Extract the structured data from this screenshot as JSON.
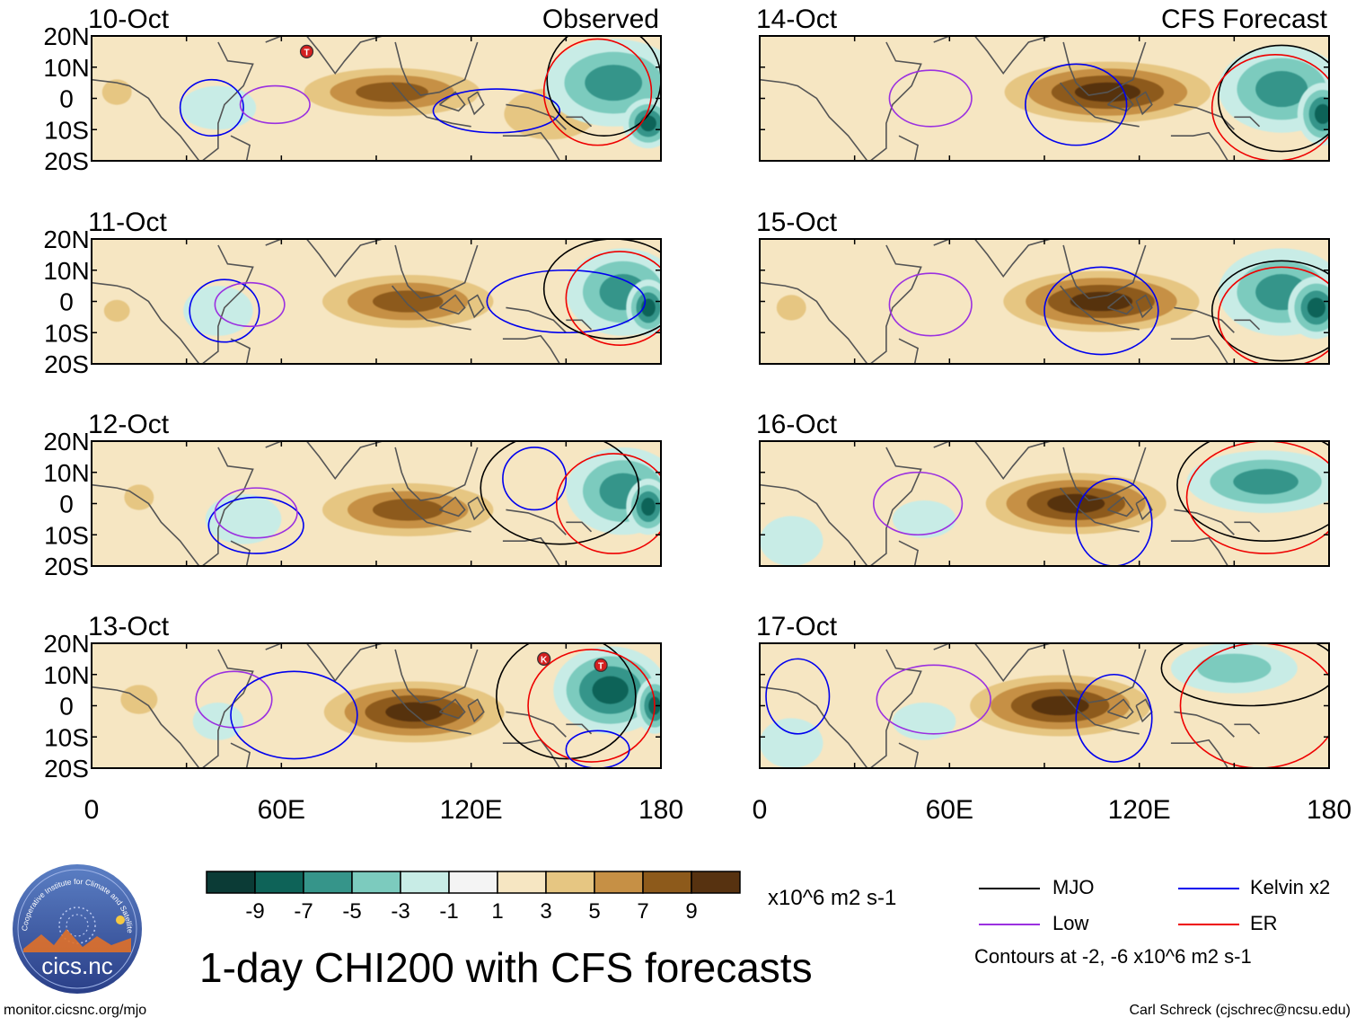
{
  "figure": {
    "title": "1-day CHI200 with CFS forecasts",
    "units": "x10^6 m2 s-1",
    "contour_note": "Contours at -2, -6 x10^6 m2 s-1",
    "column_labels": {
      "observed": "Observed",
      "forecast": "CFS Forecast"
    },
    "website": "monitor.cicsnc.org/mjo",
    "credit": "Carl Schreck (cjschrec@ncsu.edu)",
    "logo": {
      "text": "cics.nc",
      "ring_text": "Cooperative Institute for Climate and Satellites"
    }
  },
  "legend": [
    {
      "label": "MJO",
      "color": "#000000"
    },
    {
      "label": "Kelvin x2",
      "color": "#0000ee"
    },
    {
      "label": "Low",
      "color": "#9b30e0"
    },
    {
      "label": "ER",
      "color": "#ee0000"
    }
  ],
  "colorbar": {
    "colors": [
      "#0b3b36",
      "#0e6358",
      "#36958a",
      "#7ccbbe",
      "#c8ece6",
      "#f4f4f4",
      "#f6e6c2",
      "#e6c682",
      "#c69045",
      "#8d5a1b",
      "#573210"
    ],
    "tick_labels": [
      "-9",
      "-7",
      "-5",
      "-3",
      "-1",
      "1",
      "3",
      "5",
      "7",
      "9"
    ]
  },
  "chart_data": {
    "type": "heatmap",
    "variable": "CHI200 (200-hPa velocity potential) anomaly",
    "x_axis": {
      "range": [
        0,
        180
      ],
      "ticks": [
        0,
        60,
        120,
        180
      ],
      "tick_labels": [
        "0",
        "60E",
        "120E",
        "180"
      ]
    },
    "y_axis": {
      "range": [
        -20,
        20
      ],
      "ticks": [
        20,
        10,
        0,
        -10,
        -20
      ],
      "tick_labels": [
        "20N",
        "10N",
        "0",
        "10S",
        "20S"
      ]
    },
    "panels": [
      {
        "date": "10-Oct",
        "source": "Observed",
        "blobs": [
          [
            95,
            2,
            9.5,
            36,
            10
          ],
          [
            145,
            -5,
            5,
            25,
            14
          ],
          [
            40,
            -3,
            -2.5,
            12,
            7
          ],
          [
            165,
            5,
            -7,
            22,
            14
          ],
          [
            176,
            -8,
            -9,
            8,
            8
          ],
          [
            8,
            2,
            5,
            8,
            7
          ]
        ],
        "contours": [
          {
            "type": "Kelvin",
            "color": "#0000ee",
            "cx": 38,
            "cy": -3,
            "rx": 10,
            "ry": 9
          },
          {
            "type": "Low",
            "color": "#9b30e0",
            "cx": 58,
            "cy": -2,
            "rx": 11,
            "ry": 6
          },
          {
            "type": "Kelvin",
            "color": "#0000ee",
            "cx": 128,
            "cy": -4,
            "rx": 20,
            "ry": 7
          },
          {
            "type": "MJO",
            "color": "#000000",
            "cx": 162,
            "cy": 6,
            "rx": 18,
            "ry": 18
          },
          {
            "type": "ER",
            "color": "#ee0000",
            "cx": 160,
            "cy": 2,
            "rx": 17,
            "ry": 17
          }
        ],
        "storms": [
          {
            "symbol": "T",
            "lon": 68,
            "lat": 15
          }
        ]
      },
      {
        "date": "14-Oct",
        "source": "CFS Forecast",
        "blobs": [
          [
            110,
            2,
            10,
            40,
            12
          ],
          [
            165,
            3,
            -7.5,
            20,
            14
          ],
          [
            178,
            -5,
            -9,
            8,
            10
          ],
          [
            40,
            -2,
            2,
            12,
            8
          ]
        ],
        "contours": [
          {
            "type": "Low",
            "color": "#9b30e0",
            "cx": 54,
            "cy": 0,
            "rx": 13,
            "ry": 9
          },
          {
            "type": "Kelvin",
            "color": "#0000ee",
            "cx": 100,
            "cy": -2,
            "rx": 16,
            "ry": 13
          },
          {
            "type": "MJO",
            "color": "#000000",
            "cx": 165,
            "cy": 0,
            "rx": 20,
            "ry": 17
          },
          {
            "type": "ER",
            "color": "#ee0000",
            "cx": 163,
            "cy": -3,
            "rx": 20,
            "ry": 17
          }
        ],
        "storms": []
      },
      {
        "date": "11-Oct",
        "source": "Observed",
        "blobs": [
          [
            100,
            0,
            9.5,
            35,
            11
          ],
          [
            40,
            -3,
            -2.5,
            11,
            8
          ],
          [
            168,
            3,
            -7.5,
            18,
            14
          ],
          [
            176,
            -2,
            -9,
            7,
            9
          ],
          [
            8,
            -3,
            5,
            7,
            6
          ]
        ],
        "contours": [
          {
            "type": "Kelvin",
            "color": "#0000ee",
            "cx": 42,
            "cy": -3,
            "rx": 11,
            "ry": 10
          },
          {
            "type": "Low",
            "color": "#9b30e0",
            "cx": 50,
            "cy": -1,
            "rx": 11,
            "ry": 7
          },
          {
            "type": "Kelvin",
            "color": "#0000ee",
            "cx": 150,
            "cy": 0,
            "rx": 25,
            "ry": 10
          },
          {
            "type": "MJO",
            "color": "#000000",
            "cx": 165,
            "cy": 4,
            "rx": 22,
            "ry": 16
          },
          {
            "type": "ER",
            "color": "#ee0000",
            "cx": 167,
            "cy": 1,
            "rx": 17,
            "ry": 15
          }
        ],
        "storms": []
      },
      {
        "date": "15-Oct",
        "source": "CFS Forecast",
        "blobs": [
          [
            108,
            0,
            10,
            38,
            12
          ],
          [
            165,
            3,
            -7.5,
            20,
            14
          ],
          [
            176,
            -2,
            -9,
            9,
            10
          ],
          [
            10,
            -2,
            5,
            8,
            7
          ]
        ],
        "contours": [
          {
            "type": "Low",
            "color": "#9b30e0",
            "cx": 54,
            "cy": -1,
            "rx": 13,
            "ry": 10
          },
          {
            "type": "Kelvin",
            "color": "#0000ee",
            "cx": 108,
            "cy": -3,
            "rx": 18,
            "ry": 14
          },
          {
            "type": "MJO",
            "color": "#000000",
            "cx": 165,
            "cy": -3,
            "rx": 22,
            "ry": 16
          },
          {
            "type": "ER",
            "color": "#ee0000",
            "cx": 165,
            "cy": -5,
            "rx": 20,
            "ry": 16
          }
        ],
        "storms": []
      },
      {
        "date": "12-Oct",
        "source": "Observed",
        "blobs": [
          [
            100,
            -2,
            9.5,
            35,
            11
          ],
          [
            48,
            -5,
            -2,
            12,
            8
          ],
          [
            168,
            4,
            -7.5,
            18,
            14
          ],
          [
            176,
            -1,
            -9,
            7,
            9
          ],
          [
            15,
            2,
            5,
            8,
            7
          ]
        ],
        "contours": [
          {
            "type": "Kelvin",
            "color": "#0000ee",
            "cx": 52,
            "cy": -7,
            "rx": 15,
            "ry": 9
          },
          {
            "type": "Low",
            "color": "#9b30e0",
            "cx": 52,
            "cy": -3,
            "rx": 13,
            "ry": 8
          },
          {
            "type": "Kelvin",
            "color": "#0000ee",
            "cx": 140,
            "cy": 8,
            "rx": 10,
            "ry": 10
          },
          {
            "type": "MJO",
            "color": "#000000",
            "cx": 148,
            "cy": 5,
            "rx": 25,
            "ry": 18
          },
          {
            "type": "ER",
            "color": "#ee0000",
            "cx": 165,
            "cy": 0,
            "rx": 18,
            "ry": 16
          }
        ],
        "storms": []
      },
      {
        "date": "16-Oct",
        "source": "CFS Forecast",
        "blobs": [
          [
            100,
            0,
            10,
            35,
            12
          ],
          [
            160,
            7,
            -6,
            25,
            10
          ],
          [
            10,
            -12,
            -2.5,
            10,
            8
          ],
          [
            52,
            -5,
            -1.5,
            10,
            6
          ]
        ],
        "contours": [
          {
            "type": "Low",
            "color": "#9b30e0",
            "cx": 50,
            "cy": 0,
            "rx": 14,
            "ry": 10
          },
          {
            "type": "Kelvin",
            "color": "#0000ee",
            "cx": 112,
            "cy": -6,
            "rx": 12,
            "ry": 14
          },
          {
            "type": "MJO",
            "color": "#000000",
            "cx": 160,
            "cy": 6,
            "rx": 28,
            "ry": 18
          },
          {
            "type": "ER",
            "color": "#ee0000",
            "cx": 160,
            "cy": 2,
            "rx": 25,
            "ry": 18
          }
        ],
        "storms": []
      },
      {
        "date": "13-Oct",
        "source": "Observed",
        "blobs": [
          [
            102,
            -2,
            10,
            35,
            12
          ],
          [
            40,
            -5,
            -1.5,
            8,
            6
          ],
          [
            164,
            5,
            -8,
            18,
            14
          ],
          [
            178,
            0,
            -9,
            6,
            9
          ],
          [
            15,
            2,
            5,
            10,
            8
          ]
        ],
        "contours": [
          {
            "type": "Low",
            "color": "#9b30e0",
            "cx": 45,
            "cy": 2,
            "rx": 12,
            "ry": 9
          },
          {
            "type": "Kelvin",
            "color": "#0000ee",
            "cx": 64,
            "cy": -3,
            "rx": 20,
            "ry": 14
          },
          {
            "type": "MJO",
            "color": "#000000",
            "cx": 150,
            "cy": 3,
            "rx": 22,
            "ry": 20
          },
          {
            "type": "ER",
            "color": "#ee0000",
            "cx": 158,
            "cy": 0,
            "rx": 20,
            "ry": 18
          },
          {
            "type": "Kelvin",
            "color": "#0000ee",
            "cx": 160,
            "cy": -14,
            "rx": 10,
            "ry": 6
          }
        ],
        "storms": [
          {
            "symbol": "K",
            "lon": 143,
            "lat": 15
          },
          {
            "symbol": "T",
            "lon": 161,
            "lat": 13
          }
        ]
      },
      {
        "date": "17-Oct",
        "source": "CFS Forecast",
        "blobs": [
          [
            95,
            0,
            10,
            35,
            12
          ],
          [
            150,
            12,
            -5,
            20,
            8
          ],
          [
            10,
            -12,
            -3,
            10,
            8
          ],
          [
            52,
            -5,
            -1.5,
            10,
            6
          ]
        ],
        "contours": [
          {
            "type": "Low",
            "color": "#9b30e0",
            "cx": 55,
            "cy": 2,
            "rx": 18,
            "ry": 11
          },
          {
            "type": "Kelvin",
            "color": "#0000ee",
            "cx": 112,
            "cy": -4,
            "rx": 12,
            "ry": 14
          },
          {
            "type": "Kelvin",
            "color": "#0000ee",
            "cx": 12,
            "cy": 3,
            "rx": 10,
            "ry": 12
          },
          {
            "type": "MJO",
            "color": "#000000",
            "cx": 155,
            "cy": 12,
            "rx": 28,
            "ry": 12
          },
          {
            "type": "ER",
            "color": "#ee0000",
            "cx": 158,
            "cy": 0,
            "rx": 25,
            "ry": 20
          }
        ],
        "storms": []
      }
    ]
  }
}
